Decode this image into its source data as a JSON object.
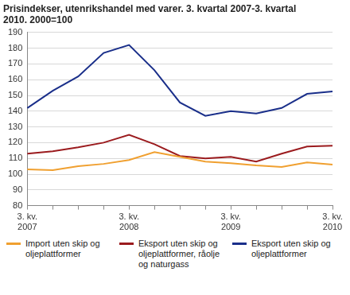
{
  "chart_data": {
    "type": "line",
    "title": "Prisindekser, utenrikshandel med varer. 3. kvartal 2007-3. kvartal 2010. 2000=100",
    "categories": [
      "3. kv. 2007",
      null,
      null,
      null,
      "3. kv. 2008",
      null,
      null,
      null,
      "3. kv. 2009",
      null,
      null,
      null,
      "3. kv. 2010"
    ],
    "series": [
      {
        "name": "Import uten skip og oljeplattformer",
        "color": "#f0a030",
        "values": [
          103,
          102.5,
          105,
          106.5,
          109,
          114,
          111,
          108,
          107,
          105.5,
          104.5,
          107.5,
          106
        ]
      },
      {
        "name": "Eksport uten skip og oljeplattformer, råolje og naturgass",
        "color": "#9b1b1e",
        "values": [
          113,
          114.5,
          117,
          120,
          125,
          119,
          111.5,
          110,
          111,
          108,
          113,
          117.5,
          118
        ]
      },
      {
        "name": "Eksport uten skip og oljeplattformer",
        "color": "#1a2f8a",
        "values": [
          142,
          153,
          162,
          177,
          182,
          166,
          145.5,
          137,
          140,
          138.5,
          142,
          151,
          152.5
        ]
      }
    ],
    "ylim": [
      80,
      190
    ],
    "yticks": [
      80,
      90,
      100,
      110,
      120,
      130,
      140,
      150,
      160,
      170,
      180,
      190
    ],
    "grid": true,
    "legend": "bottom"
  }
}
